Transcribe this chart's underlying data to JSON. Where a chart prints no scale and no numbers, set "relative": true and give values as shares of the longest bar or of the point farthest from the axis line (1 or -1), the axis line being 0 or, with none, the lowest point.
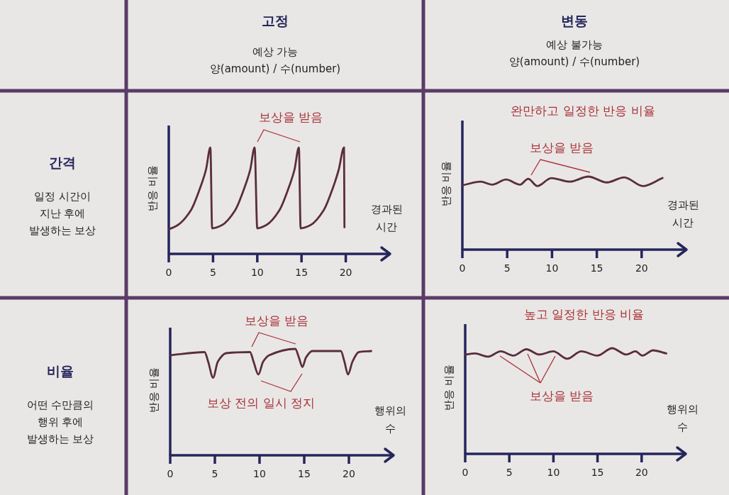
{
  "chart_data": [
    {
      "type": "other",
      "title": "고정",
      "annotations": [
        "예상 가능",
        "양(amount) / 수(number)"
      ]
    },
    {
      "type": "other",
      "title": "변동",
      "annotations": [
        "예상 불가능",
        "양(amount) / 수(number)"
      ]
    },
    {
      "type": "other",
      "title": "간격",
      "annotations": [
        "일정 시간이",
        "지난 후에",
        "발생하는 보상"
      ]
    },
    {
      "type": "line",
      "relative": true,
      "xlabel": "경과된 시간",
      "ylabel": "반응 비율",
      "xlim": [
        0,
        25
      ],
      "xticks": [
        0,
        5,
        10,
        15,
        20
      ],
      "annotations": [
        "보상을 받음"
      ],
      "series": [
        {
          "color": "#5a2d3e",
          "x": [
            0,
            1,
            2.5,
            3.5,
            4.2,
            4.7,
            4.9,
            6,
            7.5,
            8.5,
            9.2,
            9.7,
            10,
            11,
            12.5,
            13.5,
            14.2,
            14.7,
            14.9,
            16,
            17.5,
            18.5,
            19.2,
            19.8,
            19.85
          ],
          "values": [
            0.23,
            0.27,
            0.41,
            0.61,
            0.79,
            1,
            0.24,
            0.27,
            0.41,
            0.61,
            0.79,
            1,
            0.24,
            0.27,
            0.41,
            0.61,
            0.79,
            1,
            0.24,
            0.27,
            0.41,
            0.61,
            0.79,
            1,
            0.25
          ]
        }
      ]
    },
    {
      "type": "line",
      "relative": true,
      "title": "완만하고 일정한 반응 비율",
      "xlabel": "경과된 시간",
      "ylabel": "반응 비율",
      "xlim": [
        0,
        25
      ],
      "xticks": [
        0,
        5,
        10,
        15,
        20
      ],
      "annotations": [
        "보상을 받음"
      ],
      "series": [
        {
          "color": "#5a2d3e",
          "x": [
            0,
            2.04,
            3.33,
            4.88,
            6.43,
            7.34,
            8.37,
            9.92,
            11.99,
            14.05,
            16.12,
            18.06,
            20.13,
            22.33
          ],
          "values": [
            0.88,
            0.93,
            0.89,
            0.96,
            0.89,
            0.97,
            0.87,
            0.98,
            0.93,
            1,
            0.92,
            0.99,
            0.87,
            0.98
          ]
        }
      ]
    },
    {
      "type": "other",
      "title": "비율",
      "annotations": [
        "어떤 수만큼의",
        "행위 후에",
        "발생하는 보상"
      ]
    },
    {
      "type": "line",
      "relative": true,
      "xlabel": "행위의 수",
      "ylabel": "반응 비율",
      "xlim": [
        0,
        25
      ],
      "xticks": [
        0,
        5,
        10,
        15,
        20
      ],
      "annotations": [
        "보상을 받음",
        "보상 전의 일시 정지"
      ],
      "series": [
        {
          "color": "#5a2d3e",
          "x": [
            0,
            3.85,
            4.25,
            4.8,
            5.33,
            6.27,
            8.93,
            9.33,
            9.87,
            10.4,
            11.07,
            14.0,
            14.4,
            14.8,
            15.2,
            15.9,
            19.1,
            19.5,
            19.9,
            20.4,
            21.1,
            22.5
          ],
          "values": [
            0.94,
            0.97,
            0.88,
            0.73,
            0.88,
            0.96,
            0.97,
            0.88,
            0.76,
            0.88,
            0.94,
            1,
            0.92,
            0.83,
            0.92,
            0.98,
            0.98,
            0.88,
            0.76,
            0.88,
            0.97,
            0.98
          ]
        }
      ]
    },
    {
      "type": "line",
      "relative": true,
      "title": "높고 일정한 반응 비율",
      "xlabel": "행위의 수",
      "ylabel": "반응 비율",
      "xlim": [
        0,
        25
      ],
      "xticks": [
        0,
        5,
        10,
        15,
        20
      ],
      "annotations": [
        "보상을 받음"
      ],
      "series": [
        {
          "color": "#5a2d3e",
          "x": [
            0,
            1.1,
            2.57,
            4.03,
            5.48,
            6.94,
            8.4,
            9.98,
            11.57,
            13.16,
            15.0,
            16.65,
            18.27,
            19.3,
            20.1,
            21.3,
            22.8
          ],
          "values": [
            0.94,
            0.95,
            0.92,
            0.97,
            0.93,
            0.99,
            0.94,
            0.97,
            0.9,
            0.97,
            0.93,
            1,
            0.94,
            0.97,
            0.93,
            0.98,
            0.95
          ]
        }
      ]
    }
  ]
}
